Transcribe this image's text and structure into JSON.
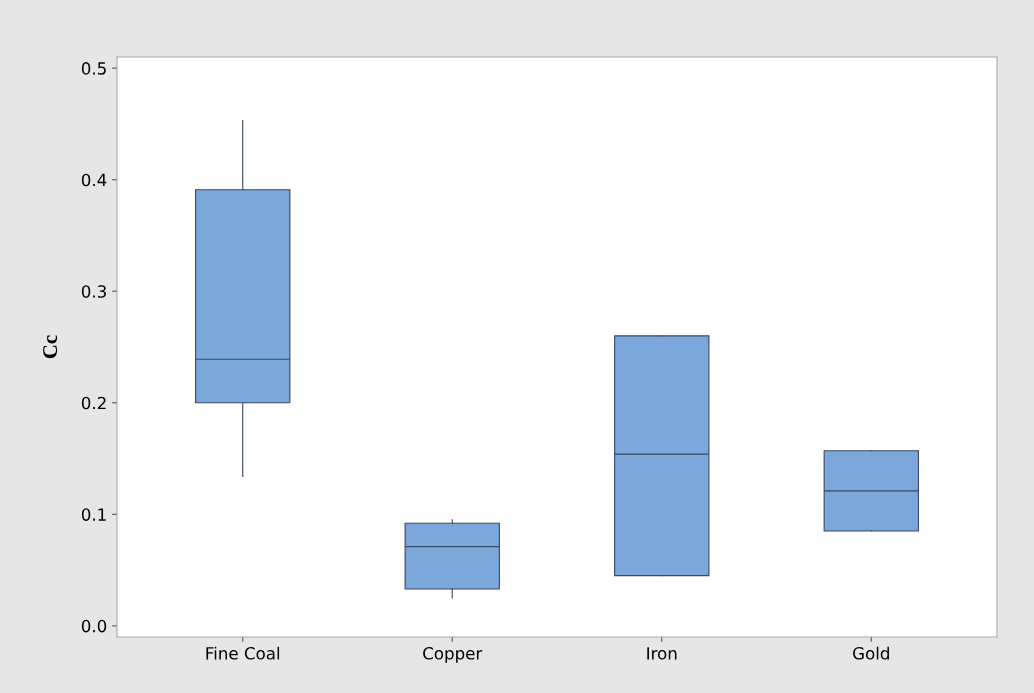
{
  "chart_data": {
    "type": "box",
    "ylabel": "Cc",
    "categories": [
      "Fine Coal",
      "Copper",
      "Iron",
      "Gold"
    ],
    "boxes": [
      {
        "low": 0.134,
        "q1": 0.2,
        "median": 0.239,
        "q3": 0.391,
        "high": 0.453
      },
      {
        "low": 0.025,
        "q1": 0.033,
        "median": 0.071,
        "q3": 0.092,
        "high": 0.095
      },
      {
        "low": 0.045,
        "q1": 0.045,
        "median": 0.154,
        "q3": 0.26,
        "high": 0.26
      },
      {
        "low": 0.085,
        "q1": 0.085,
        "median": 0.121,
        "q3": 0.157,
        "high": 0.157
      }
    ],
    "color": "#7ba7db",
    "ylim": [
      -0.01,
      0.51
    ],
    "yticks": [
      {
        "value": 0,
        "label": "0.0"
      },
      0.1,
      0.2,
      0.3,
      0.4,
      0.5
    ],
    "grid": false,
    "legend": false
  }
}
